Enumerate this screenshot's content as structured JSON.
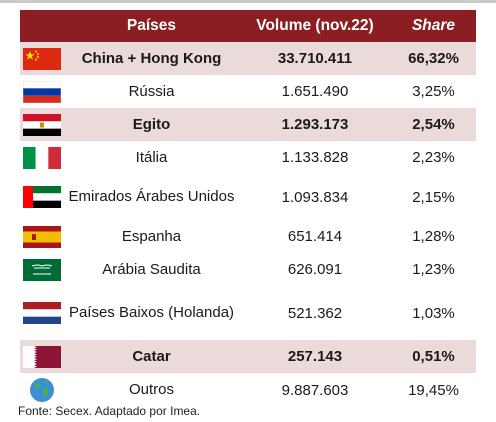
{
  "colors": {
    "header_bg": "#8B1E22",
    "row_shaded": "#EADADA",
    "row_plain": "#FFFFFF"
  },
  "header": {
    "country": "Países",
    "volume": "Volume (nov.22)",
    "share": "Share"
  },
  "rows": [
    {
      "flag": "china-flag-icon",
      "country": "China + Hong Kong",
      "volume": "33.710.411",
      "share": "66,32%",
      "bold": true,
      "shaded": true
    },
    {
      "flag": "russia-flag-icon",
      "country": "Rússia",
      "volume": "1.651.490",
      "share": "3,25%",
      "bold": false,
      "shaded": false
    },
    {
      "flag": "egypt-flag-icon",
      "country": "Egito",
      "volume": "1.293.173",
      "share": "2,54%",
      "bold": true,
      "shaded": true
    },
    {
      "flag": "italy-flag-icon",
      "country": "Itália",
      "volume": "1.133.828",
      "share": "2,23%",
      "bold": false,
      "shaded": false
    },
    {
      "flag": "uae-flag-icon",
      "country": "Emirados Árabes Unidos",
      "volume": "1.093.834",
      "share": "2,15%",
      "bold": false,
      "shaded": false
    },
    {
      "flag": "spain-flag-icon",
      "country": "Espanha",
      "volume": "651.414",
      "share": "1,28%",
      "bold": false,
      "shaded": false
    },
    {
      "flag": "saudi-flag-icon",
      "country": "Arábia Saudita",
      "volume": "626.091",
      "share": "1,23%",
      "bold": false,
      "shaded": false
    },
    {
      "flag": "netherlands-flag-icon",
      "country": "Países Baixos (Holanda)",
      "volume": "521.362",
      "share": "1,03%",
      "bold": false,
      "shaded": false
    },
    {
      "flag": "qatar-flag-icon",
      "country": "Catar",
      "volume": "257.143",
      "share": "0,51%",
      "bold": true,
      "shaded": true
    },
    {
      "flag": "globe-icon",
      "country": "Outros",
      "volume": "9.887.603",
      "share": "19,45%",
      "bold": false,
      "shaded": false
    }
  ],
  "footnote": "Fonte: Secex. Adaptado por Imea."
}
